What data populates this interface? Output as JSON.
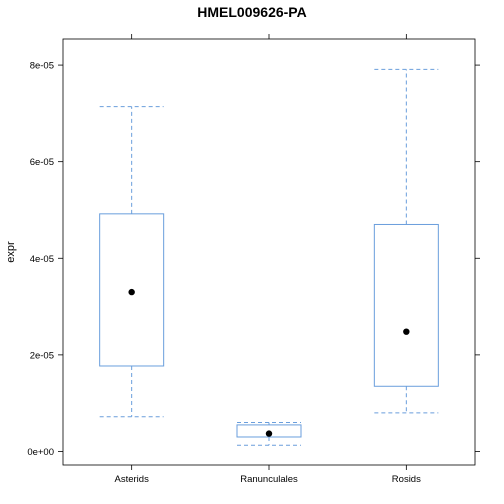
{
  "chart_data": {
    "type": "boxplot",
    "title": "HMEL009626-PA",
    "xlabel": "",
    "ylabel": "expr",
    "ylim": [
      -2.8e-06,
      8.54e-05
    ],
    "yticks": [
      0,
      2e-05,
      4e-05,
      6e-05,
      8e-05
    ],
    "ytick_labels": [
      "0e+00",
      "2e-05",
      "4e-05",
      "6e-05",
      "8e-05"
    ],
    "categories": [
      "Asterids",
      "Ranunculales",
      "Rosids"
    ],
    "boxes": [
      {
        "category": "Asterids",
        "whisker_low": 7.2e-06,
        "q1": 1.77e-05,
        "median": 3.3e-05,
        "q3": 4.92e-05,
        "whisker_high": 7.14e-05
      },
      {
        "category": "Ranunculales",
        "whisker_low": 1.3e-06,
        "q1": 3e-06,
        "median": 3.7e-06,
        "q3": 5.5e-06,
        "whisker_high": 6e-06
      },
      {
        "category": "Rosids",
        "whisker_low": 8e-06,
        "q1": 1.35e-05,
        "median": 2.48e-05,
        "q3": 4.7e-05,
        "whisker_high": 7.91e-05
      }
    ],
    "grid": false,
    "box_color": "#6a9edc",
    "median_color": "#000000"
  }
}
